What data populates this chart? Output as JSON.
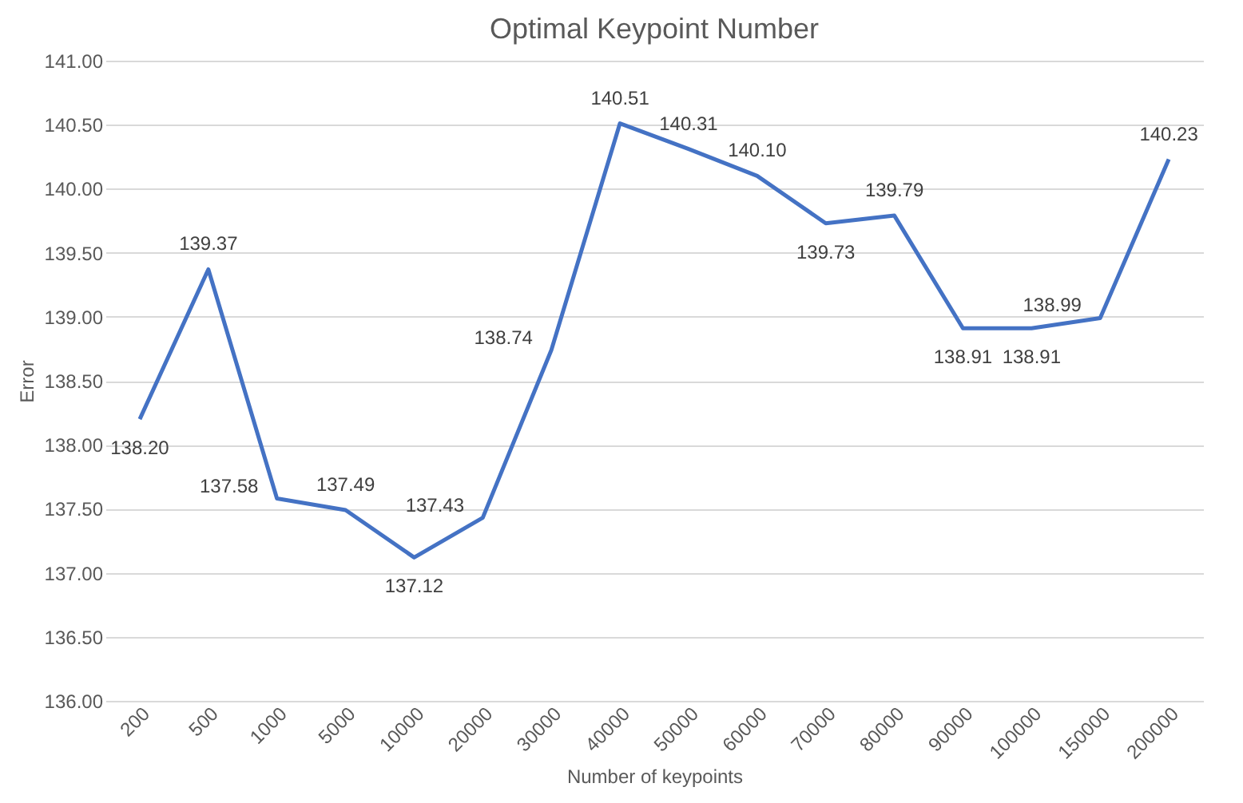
{
  "chart_data": {
    "type": "line",
    "title": "Optimal Keypoint Number",
    "xlabel": "Number of keypoints",
    "ylabel": "Error",
    "categories": [
      "200",
      "500",
      "1000",
      "5000",
      "10000",
      "20000",
      "30000",
      "40000",
      "50000",
      "60000",
      "70000",
      "80000",
      "90000",
      "100000",
      "150000",
      "200000"
    ],
    "series": [
      {
        "color": "#4472c4",
        "values": [
          138.2,
          139.37,
          137.58,
          137.49,
          137.12,
          137.43,
          138.74,
          140.51,
          140.31,
          140.1,
          139.73,
          139.79,
          138.91,
          138.91,
          138.99,
          140.23
        ],
        "value_labels": [
          "138.20",
          "139.37",
          "137.58",
          "137.49",
          "137.12",
          "137.43",
          "138.74",
          "140.51",
          "140.31",
          "140.10",
          "139.73",
          "139.79",
          "138.91",
          "138.91",
          "138.99",
          "140.23"
        ]
      }
    ],
    "ylim": [
      136,
      141
    ],
    "yticks": [
      {
        "value": 136,
        "label": "136.00"
      },
      {
        "value": 136.5,
        "label": "136.50"
      },
      {
        "value": 137,
        "label": "137.00"
      },
      {
        "value": 137.5,
        "label": "137.50"
      },
      {
        "value": 138,
        "label": "138.00"
      },
      {
        "value": 138.5,
        "label": "138.50"
      },
      {
        "value": 139,
        "label": "139.00"
      },
      {
        "value": 139.5,
        "label": "139.50"
      },
      {
        "value": 140,
        "label": "140.00"
      },
      {
        "value": 140.5,
        "label": "140.50"
      },
      {
        "value": 141,
        "label": "141.00"
      }
    ],
    "grid": "y",
    "marker": "none",
    "line_style": "solid"
  }
}
